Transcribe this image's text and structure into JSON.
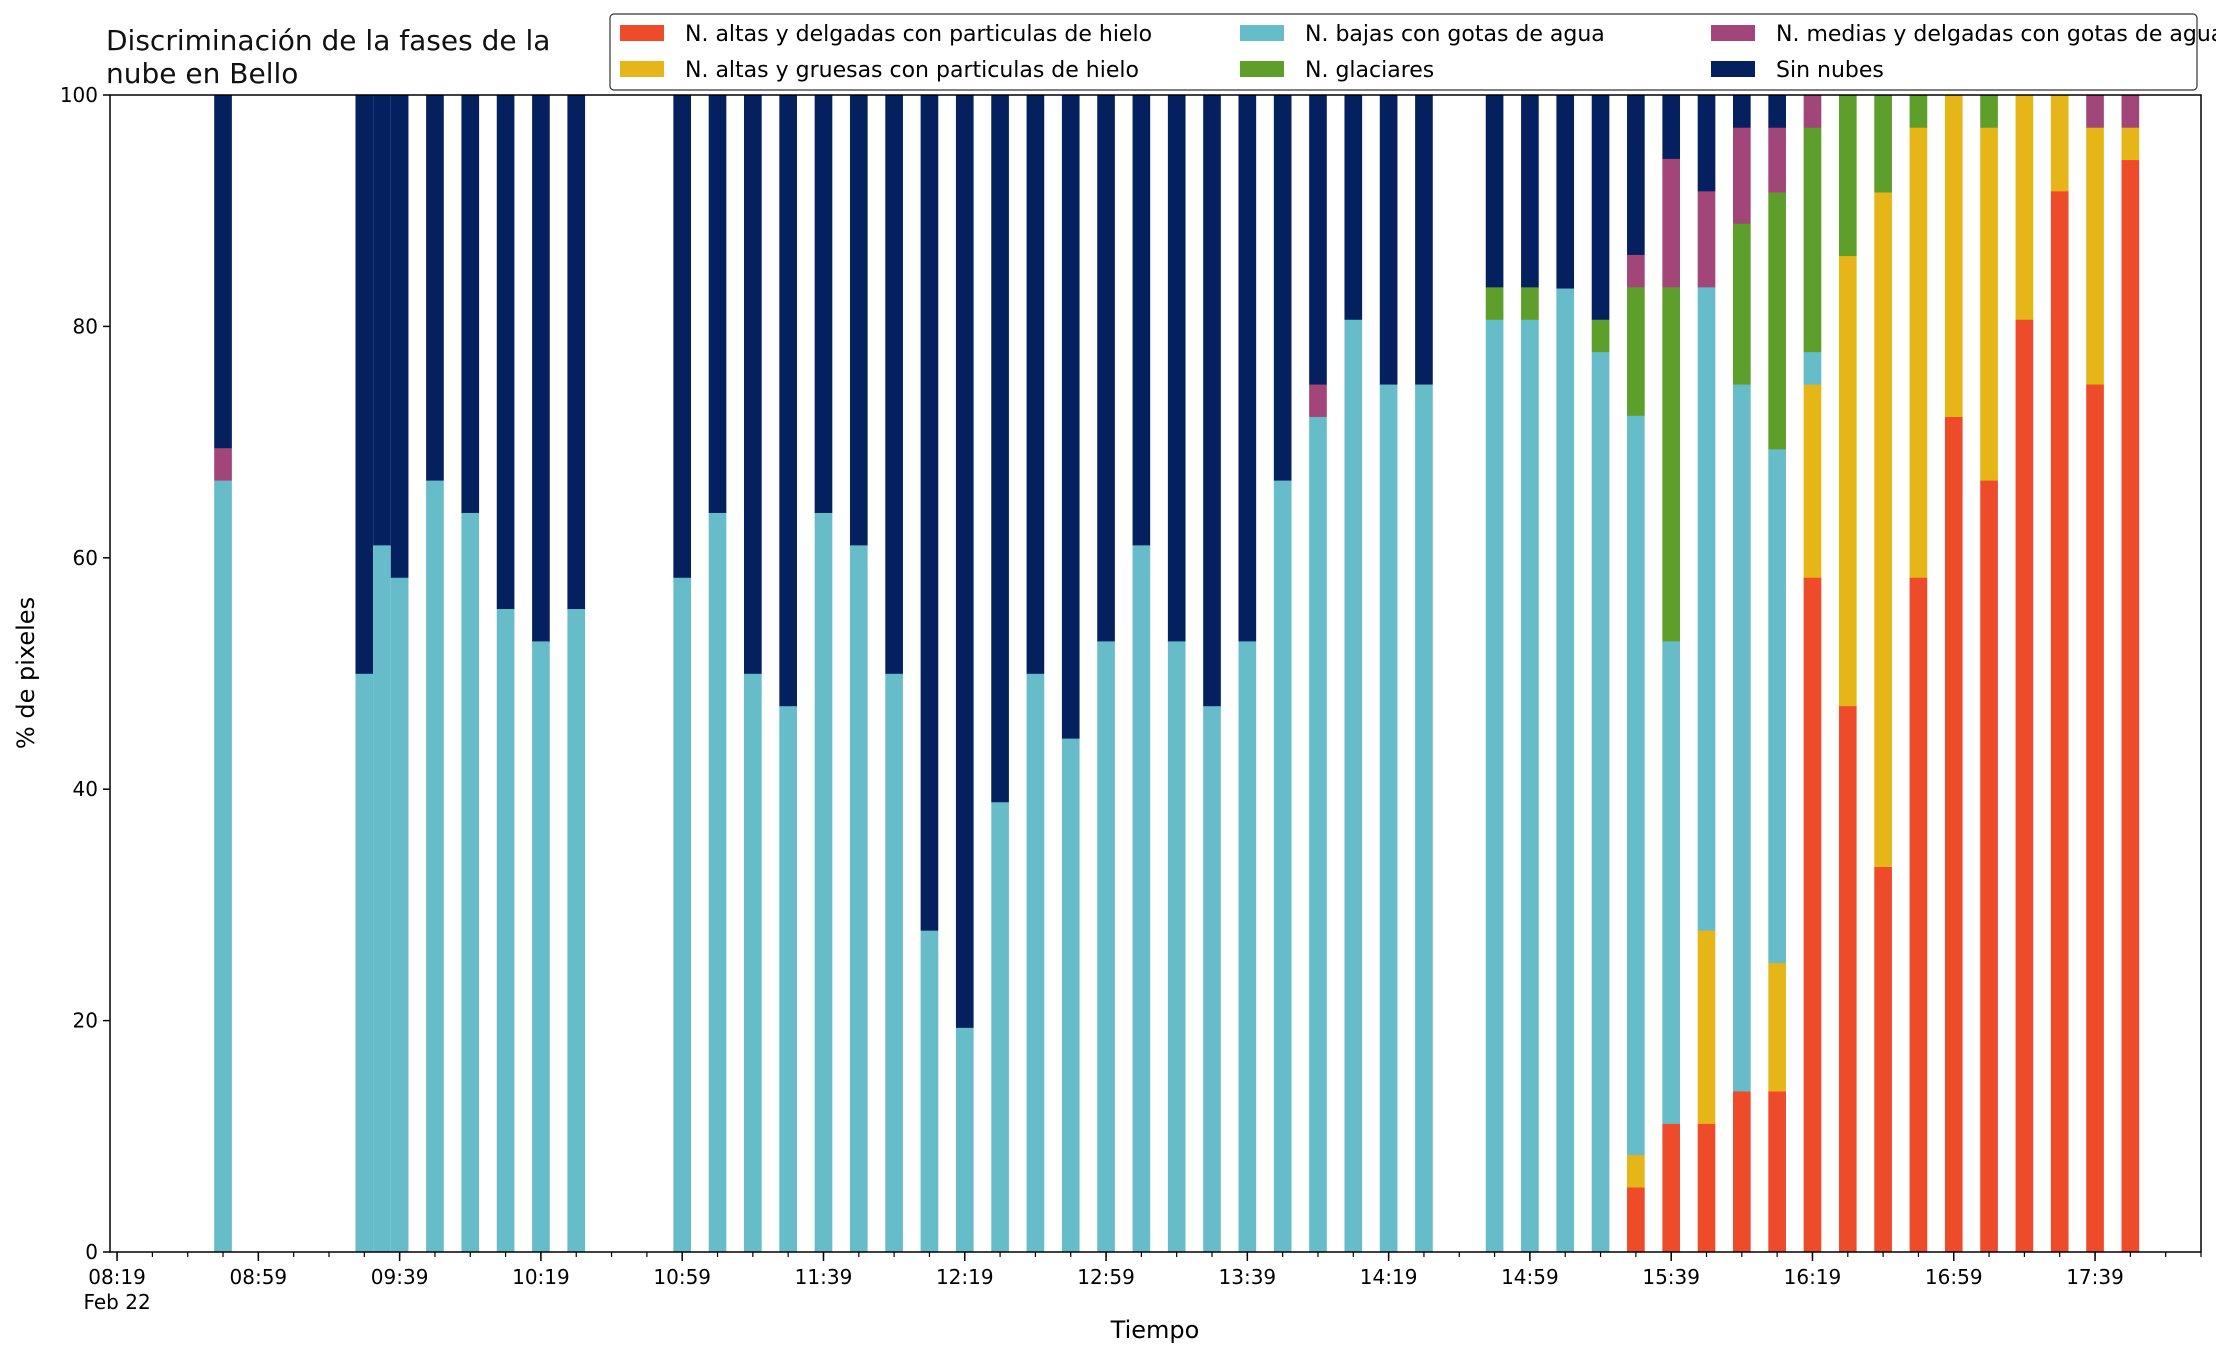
{
  "chart_data": {
    "type": "bar",
    "stacked": true,
    "title_lines": [
      "Discriminación de la fases de la",
      "nube en Bello"
    ],
    "xlabel": "Tiempo",
    "ylabel": "% de pixeles",
    "ylim": [
      0,
      100
    ],
    "yticks": [
      0,
      20,
      40,
      60,
      80,
      100
    ],
    "xlim": [
      "08:17",
      "18:09"
    ],
    "major_ticks": [
      "08:19",
      "08:59",
      "09:39",
      "10:19",
      "10:59",
      "11:39",
      "12:19",
      "12:59",
      "13:39",
      "14:19",
      "14:59",
      "15:39",
      "16:19",
      "16:59",
      "17:39"
    ],
    "xtick_labels": [
      {
        "t": "08:19",
        "lines": [
          "08:19",
          "Feb 22"
        ]
      },
      {
        "t": "08:59",
        "lines": [
          "08:59"
        ]
      },
      {
        "t": "09:39",
        "lines": [
          "09:39"
        ]
      },
      {
        "t": "10:19",
        "lines": [
          "10:19"
        ]
      },
      {
        "t": "10:59",
        "lines": [
          "10:59"
        ]
      },
      {
        "t": "11:39",
        "lines": [
          "11:39"
        ]
      },
      {
        "t": "12:19",
        "lines": [
          "12:19"
        ]
      },
      {
        "t": "12:59",
        "lines": [
          "12:59"
        ]
      },
      {
        "t": "13:39",
        "lines": [
          "13:39"
        ]
      },
      {
        "t": "14:19",
        "lines": [
          "14:19"
        ]
      },
      {
        "t": "14:59",
        "lines": [
          "14:59"
        ]
      },
      {
        "t": "15:39",
        "lines": [
          "15:39"
        ]
      },
      {
        "t": "16:19",
        "lines": [
          "16:19"
        ]
      },
      {
        "t": "16:59",
        "lines": [
          "16:59"
        ]
      },
      {
        "t": "17:39",
        "lines": [
          "17:39"
        ]
      }
    ],
    "minor_tick_minutes": 10,
    "legend": {
      "placement": "top-right",
      "columns": 3
    },
    "series": [
      {
        "name": "N. altas y delgadas con particulas de hielo",
        "color": "#ee4b2b"
      },
      {
        "name": "N. altas y gruesas con particulas de hielo",
        "color": "#e6b619"
      },
      {
        "name": "N. bajas con gotas de agua",
        "color": "#66bcc8"
      },
      {
        "name": "N. glaciares",
        "color": "#5e9e2a"
      },
      {
        "name": "N. medias y delgadas con gotas de agua",
        "color": "#a24578"
      },
      {
        "name": "Sin nubes",
        "color": "#04205e"
      }
    ],
    "legend_order": [
      0,
      2,
      4,
      1,
      3,
      5
    ],
    "bar_width_minutes": 5,
    "bars": [
      {
        "time": "08:49",
        "values": [
          0,
          0,
          66.7,
          0,
          2.8,
          30.5
        ]
      },
      {
        "time": "09:29",
        "values": [
          0,
          0,
          50.0,
          0,
          0,
          50.0
        ]
      },
      {
        "time": "09:34",
        "values": [
          0,
          0,
          61.1,
          0,
          0,
          38.9
        ]
      },
      {
        "time": "09:39",
        "values": [
          0,
          0,
          58.3,
          0,
          0,
          41.7
        ]
      },
      {
        "time": "09:49",
        "values": [
          0,
          0,
          66.7,
          0,
          0,
          33.3
        ]
      },
      {
        "time": "09:59",
        "values": [
          0,
          0,
          63.9,
          0,
          0,
          36.1
        ]
      },
      {
        "time": "10:09",
        "values": [
          0,
          0,
          55.6,
          0,
          0,
          44.4
        ]
      },
      {
        "time": "10:19",
        "values": [
          0,
          0,
          52.8,
          0,
          0,
          47.2
        ]
      },
      {
        "time": "10:29",
        "values": [
          0,
          0,
          55.6,
          0,
          0,
          44.4
        ]
      },
      {
        "time": "10:59",
        "values": [
          0,
          0,
          58.3,
          0,
          0,
          41.7
        ]
      },
      {
        "time": "11:09",
        "values": [
          0,
          0,
          63.9,
          0,
          0,
          36.1
        ]
      },
      {
        "time": "11:19",
        "values": [
          0,
          0,
          50.0,
          0,
          0,
          50.0
        ]
      },
      {
        "time": "11:29",
        "values": [
          0,
          0,
          47.2,
          0,
          0,
          52.8
        ]
      },
      {
        "time": "11:39",
        "values": [
          0,
          0,
          63.9,
          0,
          0,
          36.1
        ]
      },
      {
        "time": "11:49",
        "values": [
          0,
          0,
          61.1,
          0,
          0,
          38.9
        ]
      },
      {
        "time": "11:59",
        "values": [
          0,
          0,
          50.0,
          0,
          0,
          50.0
        ]
      },
      {
        "time": "12:09",
        "values": [
          0,
          0,
          27.8,
          0,
          0,
          72.2
        ]
      },
      {
        "time": "12:19",
        "values": [
          0,
          0,
          19.4,
          0,
          0,
          80.6
        ]
      },
      {
        "time": "12:29",
        "values": [
          0,
          0,
          38.9,
          0,
          0,
          61.1
        ]
      },
      {
        "time": "12:39",
        "values": [
          0,
          0,
          50.0,
          0,
          0,
          50.0
        ]
      },
      {
        "time": "12:49",
        "values": [
          0,
          0,
          44.4,
          0,
          0,
          55.6
        ]
      },
      {
        "time": "12:59",
        "values": [
          0,
          0,
          52.8,
          0,
          0,
          47.2
        ]
      },
      {
        "time": "13:09",
        "values": [
          0,
          0,
          61.1,
          0,
          0,
          38.9
        ]
      },
      {
        "time": "13:19",
        "values": [
          0,
          0,
          52.8,
          0,
          0,
          47.2
        ]
      },
      {
        "time": "13:29",
        "values": [
          0,
          0,
          47.2,
          0,
          0,
          52.8
        ]
      },
      {
        "time": "13:39",
        "values": [
          0,
          0,
          52.8,
          0,
          0,
          47.2
        ]
      },
      {
        "time": "13:49",
        "values": [
          0,
          0,
          66.7,
          0,
          0,
          33.3
        ]
      },
      {
        "time": "13:59",
        "values": [
          0,
          0,
          72.2,
          0,
          2.8,
          25.0
        ]
      },
      {
        "time": "14:09",
        "values": [
          0,
          0,
          80.6,
          0,
          0,
          19.4
        ]
      },
      {
        "time": "14:19",
        "values": [
          0,
          0,
          75.0,
          0,
          0,
          25.0
        ]
      },
      {
        "time": "14:29",
        "values": [
          0,
          0,
          75.0,
          0,
          0,
          25.0
        ]
      },
      {
        "time": "14:49",
        "values": [
          0,
          0,
          80.6,
          2.8,
          0,
          16.6
        ]
      },
      {
        "time": "14:59",
        "values": [
          0,
          0,
          80.6,
          2.8,
          0,
          16.6
        ]
      },
      {
        "time": "15:09",
        "values": [
          0,
          0,
          83.3,
          0,
          0,
          16.7
        ]
      },
      {
        "time": "15:19",
        "values": [
          0,
          0,
          77.8,
          2.8,
          0,
          19.4
        ]
      },
      {
        "time": "15:29",
        "values": [
          5.6,
          2.8,
          63.9,
          11.1,
          2.8,
          13.8
        ]
      },
      {
        "time": "15:39",
        "values": [
          11.1,
          0,
          41.7,
          30.6,
          11.1,
          5.5
        ]
      },
      {
        "time": "15:49",
        "values": [
          11.1,
          16.7,
          55.6,
          0,
          8.3,
          8.3
        ]
      },
      {
        "time": "15:59",
        "values": [
          13.9,
          0,
          61.1,
          13.9,
          8.3,
          2.8
        ]
      },
      {
        "time": "16:09",
        "values": [
          13.9,
          11.1,
          44.4,
          22.2,
          5.6,
          2.8
        ]
      },
      {
        "time": "16:19",
        "values": [
          58.3,
          16.7,
          2.8,
          19.4,
          2.8,
          0
        ]
      },
      {
        "time": "16:29",
        "values": [
          47.2,
          38.9,
          0,
          13.9,
          0,
          0
        ]
      },
      {
        "time": "16:39",
        "values": [
          33.3,
          58.3,
          0,
          8.4,
          0,
          0
        ]
      },
      {
        "time": "16:49",
        "values": [
          58.3,
          38.9,
          0,
          2.8,
          0,
          0
        ]
      },
      {
        "time": "16:59",
        "values": [
          72.2,
          27.8,
          0,
          0,
          0,
          0
        ]
      },
      {
        "time": "17:09",
        "values": [
          66.7,
          30.5,
          0,
          2.8,
          0,
          0
        ]
      },
      {
        "time": "17:19",
        "values": [
          80.6,
          19.4,
          0,
          0,
          0,
          0
        ]
      },
      {
        "time": "17:29",
        "values": [
          91.7,
          8.3,
          0,
          0,
          0,
          0
        ]
      },
      {
        "time": "17:39",
        "values": [
          75.0,
          22.2,
          0,
          0,
          2.8,
          0
        ]
      },
      {
        "time": "17:49",
        "values": [
          94.4,
          2.8,
          0,
          0,
          2.8,
          0
        ]
      }
    ]
  }
}
